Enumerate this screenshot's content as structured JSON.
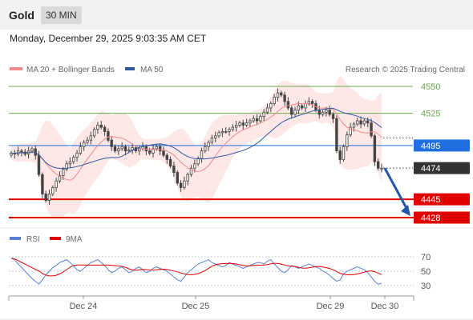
{
  "header": {
    "title": "Gold",
    "timeframe": "30 MIN"
  },
  "datetime": "Monday, December 29, 2025 9:03:35 AM CET",
  "legend": {
    "bollinger": "MA 20 + Bollinger Bands",
    "ma50": "MA 50",
    "credit": "Research © 2025 Trading Central",
    "rsi": "RSI",
    "rsi_ma": "9MA"
  },
  "colors": {
    "bollinger": "#f08a8a",
    "ma50": "#2c5aa0",
    "resistance": "#6aa84f",
    "current_price": "#1f6fe0",
    "support": "#e00000",
    "candle": "#444444",
    "band_fill": "#fde3e3",
    "rsi": "#5b7fd6",
    "rsi_ma": "#e00000",
    "arrow": "#2156a8"
  },
  "chart_data": {
    "type": "candlestick",
    "x_labels": [
      "Dec 24",
      "Dec 25",
      "Dec 29",
      "Dec 30"
    ],
    "y_range": [
      4415,
      4560
    ],
    "levels": [
      {
        "value": 4550,
        "label": "4550",
        "kind": "resistance"
      },
      {
        "value": 4525,
        "label": "4525",
        "kind": "resistance"
      },
      {
        "value": 4495,
        "label": "4495",
        "kind": "current"
      },
      {
        "value": 4474,
        "label": "4474",
        "kind": "last"
      },
      {
        "value": 4445,
        "label": "4445",
        "kind": "support"
      },
      {
        "value": 4428,
        "label": "4428",
        "kind": "support"
      }
    ],
    "forecast": {
      "from": 4474,
      "to": 4428,
      "direction": "down"
    },
    "price_path": [
      4488,
      4487,
      4490,
      4489,
      4487,
      4490,
      4492,
      4486,
      4468,
      4450,
      4444,
      4450,
      4456,
      4462,
      4467,
      4473,
      4478,
      4480,
      4484,
      4488,
      4494,
      4498,
      4500,
      4504,
      4510,
      4514,
      4512,
      4508,
      4500,
      4494,
      4490,
      4492,
      4494,
      4490,
      4491,
      4493,
      4490,
      4492,
      4494,
      4490,
      4488,
      4492,
      4494,
      4490,
      4486,
      4482,
      4476,
      4470,
      4460,
      4456,
      4462,
      4468,
      4474,
      4478,
      4483,
      4490,
      4494,
      4498,
      4502,
      4504,
      4507,
      4508,
      4508,
      4510,
      4512,
      4514,
      4516,
      4514,
      4516,
      4518,
      4520,
      4518,
      4522,
      4526,
      4530,
      4534,
      4540,
      4544,
      4542,
      4536,
      4530,
      4524,
      4528,
      4532,
      4530,
      4534,
      4536,
      4534,
      4528,
      4524,
      4526,
      4528,
      4524,
      4520,
      4490,
      4482,
      4494,
      4505,
      4512,
      4515,
      4518,
      4515,
      4518,
      4516,
      4504,
      4480,
      4474,
      4474
    ],
    "rsi": {
      "levels": [
        70,
        50,
        30
      ],
      "path": [
        68,
        66,
        60,
        55,
        50,
        45,
        40,
        36,
        32,
        38,
        45,
        50,
        55,
        58,
        62,
        64,
        66,
        62,
        58,
        52,
        50,
        54,
        58,
        62,
        64,
        66,
        62,
        58,
        52,
        48,
        50,
        54,
        56,
        52,
        48,
        50,
        54,
        56,
        52,
        48,
        50,
        54,
        56,
        54,
        52,
        50,
        46,
        42,
        38,
        36,
        42,
        48,
        52,
        56,
        60,
        62,
        64,
        66,
        62,
        60,
        58,
        56,
        58,
        62,
        60,
        58,
        56,
        54,
        56,
        58,
        60,
        62,
        62,
        60,
        64,
        66,
        60,
        55,
        50,
        48,
        52,
        58,
        56,
        54,
        56,
        58,
        60,
        58,
        56,
        54,
        50,
        48,
        44,
        40,
        36,
        38,
        46,
        50,
        52,
        54,
        56,
        54,
        52,
        48,
        42,
        36,
        32,
        33
      ]
    }
  }
}
